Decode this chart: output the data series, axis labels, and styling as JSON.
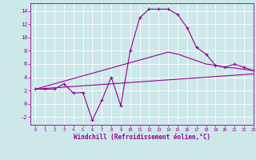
{
  "xlabel": "Windchill (Refroidissement éolien,°C)",
  "background_color": "#cce8e8",
  "grid_color": "#ffffff",
  "line_color": "#990099",
  "x_hours": [
    0,
    1,
    2,
    3,
    4,
    5,
    6,
    7,
    8,
    9,
    10,
    11,
    12,
    13,
    14,
    15,
    16,
    17,
    18,
    19,
    20,
    21,
    22,
    23
  ],
  "temp_line": [
    2.2,
    2.2,
    2.2,
    3.0,
    1.6,
    1.7,
    -2.5,
    0.5,
    4.0,
    -0.3,
    8.0,
    13.0,
    14.3,
    14.3,
    14.3,
    13.5,
    11.5,
    8.5,
    7.5,
    5.8,
    5.5,
    6.0,
    5.5,
    5.0
  ],
  "linear1": [
    2.2,
    2.3,
    2.4,
    2.5,
    2.6,
    2.7,
    2.8,
    2.9,
    3.0,
    3.1,
    3.2,
    3.3,
    3.4,
    3.5,
    3.6,
    3.7,
    3.8,
    3.9,
    4.0,
    4.1,
    4.2,
    4.3,
    4.4,
    4.5
  ],
  "linear2": [
    2.2,
    2.6,
    3.0,
    3.4,
    3.8,
    4.2,
    4.6,
    5.0,
    5.4,
    5.8,
    6.2,
    6.6,
    7.0,
    7.4,
    7.8,
    7.5,
    7.0,
    6.5,
    6.0,
    5.8,
    5.5,
    5.4,
    5.2,
    5.0
  ],
  "yticks": [
    -2,
    0,
    2,
    4,
    6,
    8,
    10,
    12,
    14
  ],
  "ylim": [
    -3.2,
    15.2
  ],
  "xlim": [
    -0.5,
    23
  ]
}
